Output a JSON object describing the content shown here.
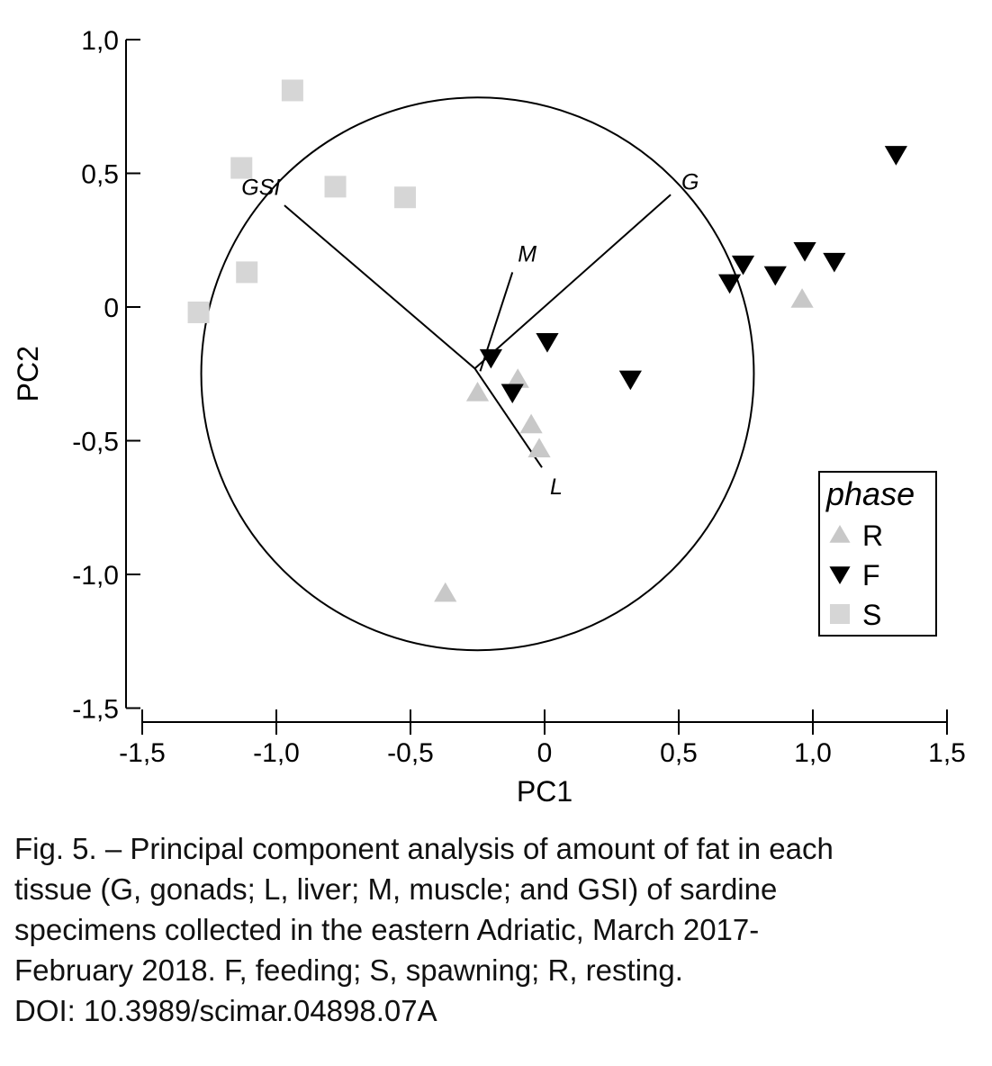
{
  "chart_data": {
    "type": "scatter",
    "title": "",
    "xlabel": "PC1",
    "ylabel": "PC2",
    "xlim": [
      -1.5,
      1.5
    ],
    "ylim": [
      -1.5,
      1.0
    ],
    "x_ticks": [
      "-1,5",
      "-1,0",
      "-0,5",
      "0",
      "0,5",
      "1,0",
      "1,5"
    ],
    "x_tick_values": [
      -1.5,
      -1.0,
      -0.5,
      0,
      0.5,
      1.0,
      1.5
    ],
    "y_ticks": [
      "1,0",
      "0,5",
      "0",
      "-0,5",
      "-1,0",
      "-1,5"
    ],
    "y_tick_values": [
      1.0,
      0.5,
      0,
      -0.5,
      -1.0,
      -1.5
    ],
    "grid": false,
    "legend": {
      "title": "phase",
      "placement": "bottom-right",
      "entries": [
        {
          "name": "R",
          "marker": "triangle-up",
          "color": "#c8c8c8"
        },
        {
          "name": "F",
          "marker": "triangle-down",
          "color": "#000000"
        },
        {
          "name": "S",
          "marker": "square",
          "color": "#d6d6d6"
        }
      ]
    },
    "circle": {
      "center": [
        -0.25,
        -0.25
      ],
      "radius": 1.03
    },
    "series": [
      {
        "name": "R",
        "points": [
          [
            -0.25,
            -0.32
          ],
          [
            -0.1,
            -0.27
          ],
          [
            -0.05,
            -0.44
          ],
          [
            -0.02,
            -0.53
          ],
          [
            -0.37,
            -1.07
          ],
          [
            0.96,
            0.03
          ]
        ]
      },
      {
        "name": "F",
        "points": [
          [
            -0.2,
            -0.19
          ],
          [
            -0.12,
            -0.32
          ],
          [
            0.01,
            -0.13
          ],
          [
            0.32,
            -0.27
          ],
          [
            0.69,
            0.09
          ],
          [
            0.74,
            0.16
          ],
          [
            0.86,
            0.12
          ],
          [
            0.97,
            0.21
          ],
          [
            1.08,
            0.17
          ],
          [
            1.31,
            0.57
          ]
        ]
      },
      {
        "name": "S",
        "points": [
          [
            -0.94,
            0.81
          ],
          [
            -1.13,
            0.52
          ],
          [
            -0.78,
            0.45
          ],
          [
            -0.52,
            0.41
          ],
          [
            -1.11,
            0.13
          ],
          [
            -1.29,
            -0.02
          ]
        ]
      }
    ],
    "vectors": [
      {
        "label": "GSI",
        "from": [
          -0.26,
          -0.23
        ],
        "to": [
          -0.97,
          0.38
        ],
        "label_at": [
          -1.13,
          0.42
        ]
      },
      {
        "label": "G",
        "from": [
          -0.26,
          -0.23
        ],
        "to": [
          0.47,
          0.42
        ],
        "label_at": [
          0.51,
          0.44
        ]
      },
      {
        "label": "M",
        "from": [
          -0.24,
          -0.24
        ],
        "to": [
          -0.12,
          0.13
        ],
        "label_at": [
          -0.1,
          0.17
        ]
      },
      {
        "label": "L",
        "from": [
          -0.26,
          -0.23
        ],
        "to": [
          -0.01,
          -0.6
        ],
        "label_at": [
          0.02,
          -0.7
        ]
      }
    ]
  },
  "caption": {
    "lines": [
      "Fig. 5. – Principal component analysis of amount of fat in each",
      "tissue (G, gonads; L, liver; M, muscle; and GSI) of sardine",
      "specimens collected in the eastern Adriatic, March 2017-",
      "February 2018. F, feeding; S, spawning; R, resting.",
      "DOI: 10.3989/scimar.04898.07A"
    ]
  }
}
